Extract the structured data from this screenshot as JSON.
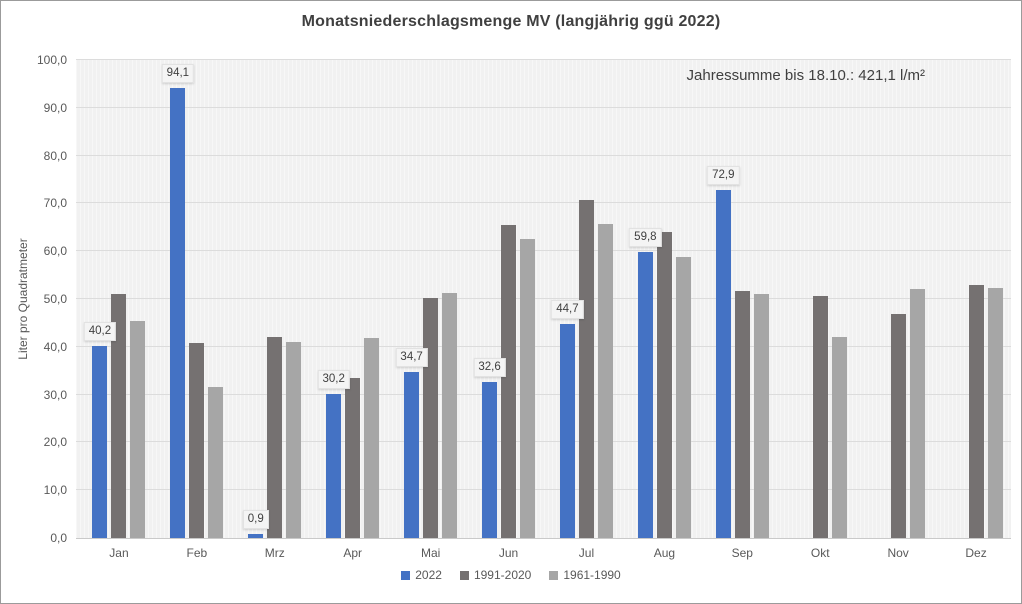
{
  "chart_data": {
    "type": "bar",
    "title": "Monatsniederschlagsmenge MV (langjährig ggü 2022)",
    "annotation": "Jahressumme bis 18.10.: 421,1 l/m²",
    "ylabel": "Liter pro Quadratmeter",
    "xlabel": "",
    "ylim": [
      0,
      100
    ],
    "ytick_step": 10,
    "ytick_labels": [
      "0,0",
      "10,0",
      "20,0",
      "30,0",
      "40,0",
      "50,0",
      "60,0",
      "70,0",
      "80,0",
      "90,0",
      "100,0"
    ],
    "categories": [
      "Jan",
      "Feb",
      "Mrz",
      "Apr",
      "Mai",
      "Jun",
      "Jul",
      "Aug",
      "Sep",
      "Okt",
      "Nov",
      "Dez"
    ],
    "series": [
      {
        "name": "2022",
        "color": "#4472C4",
        "values": [
          40.2,
          94.1,
          0.9,
          30.2,
          34.7,
          32.6,
          44.7,
          59.8,
          72.9,
          null,
          null,
          null
        ],
        "data_labels": [
          "40,2",
          "94,1",
          "0,9",
          "30,2",
          "34,7",
          "32,6",
          "44,7",
          "59,8",
          "72,9",
          null,
          null,
          null
        ]
      },
      {
        "name": "1991-2020",
        "color": "#757171",
        "values": [
          51.0,
          40.7,
          42.1,
          33.4,
          50.3,
          65.4,
          70.8,
          64.0,
          51.7,
          50.7,
          46.9,
          52.9
        ]
      },
      {
        "name": "1961-1990",
        "color": "#A6A6A6",
        "values": [
          45.5,
          31.5,
          41.1,
          41.8,
          51.3,
          62.6,
          65.7,
          58.7,
          51.0,
          42.1,
          52.0,
          52.2
        ]
      }
    ],
    "grid": true,
    "legend_position": "bottom",
    "colors": {
      "plot_bg": "#f1f1f1",
      "gridline": "#dcdcdc",
      "axis_line": "#c9c9c9",
      "axis_text": "#595959",
      "title_text": "#404040",
      "label_box_bg": "#f4f4f4",
      "label_box_border": "#e2e2e2"
    }
  }
}
